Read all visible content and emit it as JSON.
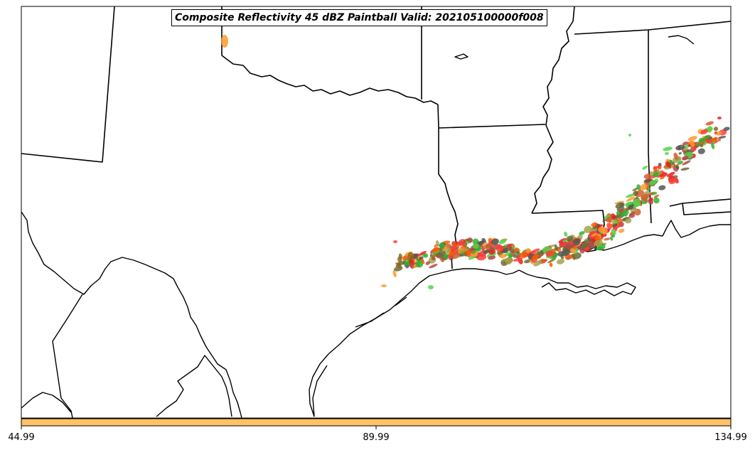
{
  "map": {
    "title": "Composite Reflectivity 45 dBZ Paintball Valid: 202105100000f008",
    "member_colors": [
      "#ff9a2e",
      "#ff5a00",
      "#e81e1e",
      "#ff3b3b",
      "#58d14a",
      "#2fb12f",
      "#a6a24a",
      "#8a6a1a",
      "#b04a4a",
      "#6b6b3a",
      "#555555",
      "#d65c2e"
    ],
    "colorbar": {
      "color": "#ffc266",
      "ticks": [
        "44.99",
        "89.99",
        "134.99"
      ]
    }
  }
}
